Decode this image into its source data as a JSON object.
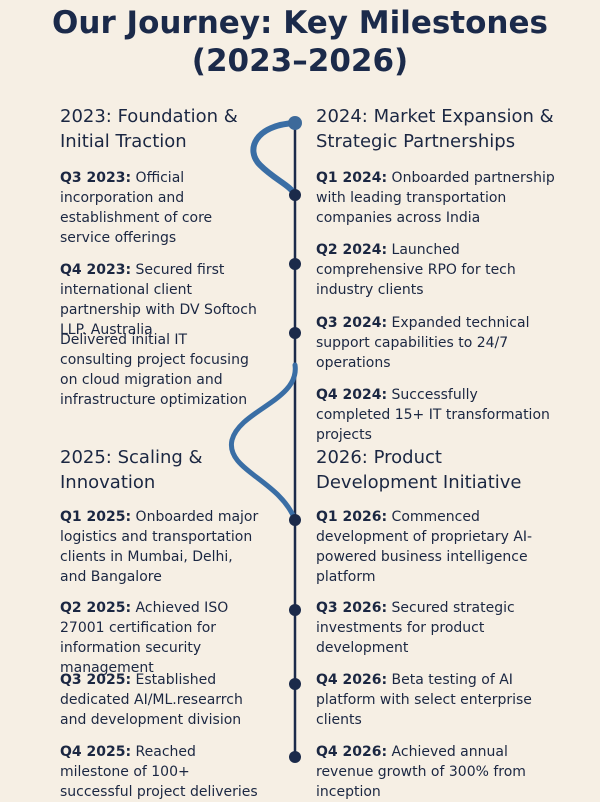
{
  "title": [
    "Our Journey: Key Milestones",
    "(2023–2026)"
  ],
  "sections": [
    {
      "heading": "2023: Foundation & Initial Traction",
      "items": [
        {
          "label": "Q3 2023:",
          "text": "Official incorporation and establishment of core service offerings"
        },
        {
          "label": "Q4 2023:",
          "text": "Secured first international client partnership with DV Softoch LLP. Australia"
        },
        {
          "text": "Delivered initial IT consulting project focusing on cloud migration and infrastructure optimization"
        }
      ]
    },
    {
      "heading": "2024: Market Expansion & Strategic Partnerships",
      "items": [
        {
          "label": "Q1 2024:",
          "text": "Onboarded partnership with leading transportation companies across India"
        },
        {
          "label": "Q2 2024:",
          "text": "Launched comprehensive RPO for tech industry clients"
        },
        {
          "label": "Q3 2024:",
          "text": "Expanded technical support capabilities to 24/7 operations"
        },
        {
          "label": "Q4 2024:",
          "text": "Successfully completed 15+ IT transformation projects"
        }
      ]
    },
    {
      "heading": "2025: Scaling & Innovation",
      "items": [
        {
          "label": "Q1 2025:",
          "text": "Onboarded major logistics and transportation clients in Mumbai, Delhi, and Bangalore"
        },
        {
          "label": "Q2 2025:",
          "text": "Achieved ISO 27001 certification for information security management"
        },
        {
          "label": "Q3 2025:",
          "text": "Established dedicated AI/ML.researrch and development division"
        },
        {
          "label": "Q4 2025:",
          "text": "Reached milestone of 100+ successful project deliveries"
        }
      ]
    },
    {
      "heading": "2026: Product Development Initiative",
      "items": [
        {
          "label": "Q1 2026:",
          "text": "Commenced development of proprietary AI-powered business intelligence platform"
        },
        {
          "label": "Q3 2026:",
          "text": "Secured strategic investments for product development"
        },
        {
          "label": "Q4 2026:",
          "text": "Beta testing of AI platform with select enterprise clients"
        },
        {
          "label": "Q4 2026:",
          "text": "Achieved annual revenue growth of 300% from inception"
        }
      ]
    }
  ]
}
